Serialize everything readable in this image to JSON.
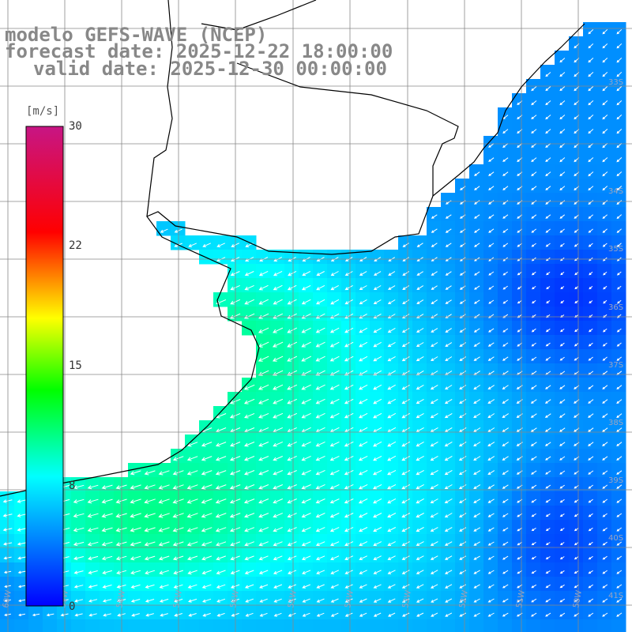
{
  "title": {
    "line1": "modelo GEFS-WAVE (NCEP)",
    "line2": "forecast date: 2025-12-22 18:00:00",
    "line3": "valid date: 2025-12-30 00:00:00"
  },
  "colorbar": {
    "unit": "[m/s]",
    "ticks": [
      "30",
      "22",
      "15",
      "8",
      "0"
    ],
    "tick_values": [
      30,
      22,
      15,
      8,
      0
    ],
    "min": 0,
    "max": 30,
    "colors": [
      "#0000ff",
      "#00ffff",
      "#00ff00",
      "#ffff00",
      "#ff0000",
      "#c71585"
    ]
  },
  "map": {
    "lat_labels": [
      "33S",
      "34S",
      "35S",
      "36S",
      "37S",
      "38S",
      "39S",
      "40S",
      "41S"
    ],
    "lon_labels": [
      "60W",
      "59W",
      "58W",
      "57W",
      "56W",
      "55W",
      "54W",
      "53W",
      "52W",
      "51W",
      "50W"
    ],
    "land_color": "#ffffff",
    "grid_color": "#888888",
    "coast_color": "#000000",
    "arrow_color": "#ffffff",
    "wind_direction": "from north-east",
    "speed_range_ms": [
      2,
      13
    ]
  }
}
